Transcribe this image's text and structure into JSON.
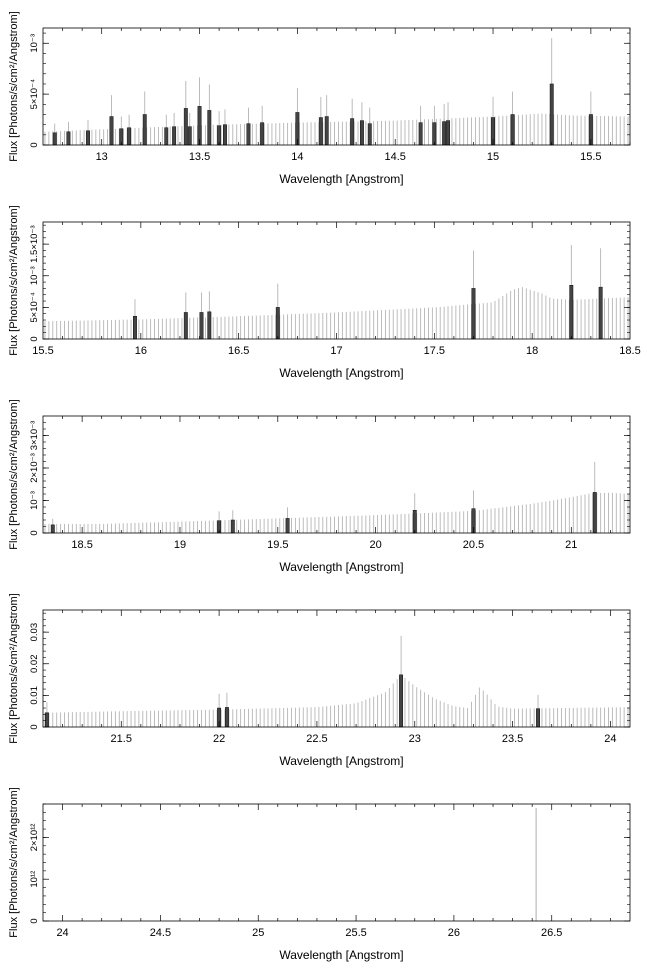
{
  "chart_data": [
    {
      "type": "line",
      "xlabel": "Wavelength [Angstrom]",
      "ylabel": "Flux [Photons/s/cm²/Angstrom]",
      "xlim": [
        12.7,
        15.7
      ],
      "ylim": [
        0,
        0.00115
      ],
      "xticks": [
        13,
        13.5,
        14,
        14.5,
        15,
        15.5
      ],
      "xtick_labels": [
        "13",
        "13.5",
        "14",
        "14.5",
        "15",
        "15.5"
      ],
      "yticks": [
        0,
        0.0005,
        0.001
      ],
      "ytick_labels": [
        "0",
        "5×10⁻⁴",
        "10⁻³"
      ],
      "continuum": [
        [
          12.7,
          0.00013
        ],
        [
          13.2,
          0.00017
        ],
        [
          13.6,
          0.0002
        ],
        [
          14.0,
          0.00022
        ],
        [
          14.5,
          0.00024
        ],
        [
          15.0,
          0.00028
        ],
        [
          15.25,
          0.00031
        ],
        [
          15.4,
          0.00029
        ],
        [
          15.7,
          0.00028
        ]
      ],
      "lines": [
        [
          12.76,
          0.00012
        ],
        [
          12.83,
          0.00013
        ],
        [
          12.93,
          0.00014
        ],
        [
          13.05,
          0.00028
        ],
        [
          13.1,
          0.00016
        ],
        [
          13.14,
          0.00017
        ],
        [
          13.22,
          0.0003
        ],
        [
          13.33,
          0.00017
        ],
        [
          13.37,
          0.00018
        ],
        [
          13.43,
          0.00036
        ],
        [
          13.45,
          0.00018
        ],
        [
          13.5,
          0.00038
        ],
        [
          13.55,
          0.00034
        ],
        [
          13.6,
          0.00019
        ],
        [
          13.63,
          0.0002
        ],
        [
          13.75,
          0.00021
        ],
        [
          13.82,
          0.00022
        ],
        [
          14.0,
          0.00032
        ],
        [
          14.12,
          0.00027
        ],
        [
          14.15,
          0.00028
        ],
        [
          14.28,
          0.00026
        ],
        [
          14.33,
          0.00024
        ],
        [
          14.37,
          0.00021
        ],
        [
          14.63,
          0.00022
        ],
        [
          14.7,
          0.00022
        ],
        [
          14.75,
          0.00023
        ],
        [
          14.77,
          0.00024
        ],
        [
          15.0,
          0.00027
        ],
        [
          15.1,
          0.0003
        ],
        [
          15.3,
          0.0006
        ],
        [
          15.5,
          0.0003
        ]
      ]
    },
    {
      "type": "line",
      "xlabel": "Wavelength [Angstrom]",
      "ylabel": "Flux [Photons/s/cm²/Angstrom]",
      "xlim": [
        15.5,
        18.5
      ],
      "ylim": [
        0,
        0.00185
      ],
      "xticks": [
        15.5,
        16,
        16.5,
        17,
        17.5,
        18,
        18.5
      ],
      "xtick_labels": [
        "15.5",
        "16",
        "16.5",
        "17",
        "17.5",
        "18",
        "18.5"
      ],
      "yticks": [
        0,
        0.0005,
        0.001,
        0.0015
      ],
      "ytick_labels": [
        "0",
        "5×10⁻⁴",
        "10⁻³",
        "1.5×10⁻³"
      ],
      "continuum": [
        [
          15.5,
          0.00028
        ],
        [
          16.0,
          0.00031
        ],
        [
          16.5,
          0.00036
        ],
        [
          17.0,
          0.00042
        ],
        [
          17.5,
          0.0005
        ],
        [
          17.8,
          0.00058
        ],
        [
          17.9,
          0.00078
        ],
        [
          17.95,
          0.00082
        ],
        [
          18.05,
          0.00072
        ],
        [
          18.1,
          0.00064
        ],
        [
          18.2,
          0.00062
        ],
        [
          18.35,
          0.00064
        ],
        [
          18.5,
          0.00066
        ]
      ],
      "lines": [
        [
          15.97,
          0.00036
        ],
        [
          16.23,
          0.00042
        ],
        [
          16.31,
          0.00042
        ],
        [
          16.35,
          0.00043
        ],
        [
          16.7,
          0.0005
        ],
        [
          17.7,
          0.0008
        ],
        [
          18.2,
          0.00085
        ],
        [
          18.35,
          0.00082
        ]
      ]
    },
    {
      "type": "line",
      "xlabel": "Wavelength [Angstrom]",
      "ylabel": "Flux [Photons/s/cm²/Angstrom]",
      "xlim": [
        18.3,
        21.3
      ],
      "ylim": [
        0,
        0.0036
      ],
      "xticks": [
        18.5,
        19,
        19.5,
        20,
        20.5,
        21
      ],
      "xtick_labels": [
        "18.5",
        "19",
        "19.5",
        "20",
        "20.5",
        "21"
      ],
      "yticks": [
        0,
        0.001,
        0.002,
        0.003
      ],
      "ytick_labels": [
        "0",
        "10⁻³",
        "2×10⁻³",
        "3×10⁻³"
      ],
      "continuum": [
        [
          18.3,
          0.00028
        ],
        [
          18.6,
          0.00028
        ],
        [
          19.0,
          0.00035
        ],
        [
          19.5,
          0.00045
        ],
        [
          20.0,
          0.00055
        ],
        [
          20.5,
          0.00068
        ],
        [
          20.8,
          0.0009
        ],
        [
          21.0,
          0.0011
        ],
        [
          21.1,
          0.00122
        ],
        [
          21.2,
          0.00124
        ],
        [
          21.3,
          0.0012
        ]
      ],
      "lines": [
        [
          18.35,
          0.00025
        ],
        [
          19.2,
          0.00038
        ],
        [
          19.27,
          0.0004
        ],
        [
          19.55,
          0.00045
        ],
        [
          20.2,
          0.0007
        ],
        [
          20.5,
          0.00075
        ],
        [
          21.12,
          0.00125
        ]
      ]
    },
    {
      "type": "line",
      "xlabel": "Wavelength [Angstrom]",
      "ylabel": "Flux [Photons/s/cm²/Angstrom]",
      "xlim": [
        21.1,
        24.1
      ],
      "ylim": [
        0,
        0.037
      ],
      "xticks": [
        21.5,
        22,
        22.5,
        23,
        23.5,
        24
      ],
      "xtick_labels": [
        "21.5",
        "22",
        "22.5",
        "23",
        "23.5",
        "24"
      ],
      "yticks": [
        0,
        0.01,
        0.02,
        0.03
      ],
      "ytick_labels": [
        "0",
        "0.01",
        "0.02",
        "0.03"
      ],
      "continuum": [
        [
          21.1,
          0.0045
        ],
        [
          21.5,
          0.005
        ],
        [
          22.0,
          0.0055
        ],
        [
          22.5,
          0.0063
        ],
        [
          22.7,
          0.0075
        ],
        [
          22.85,
          0.011
        ],
        [
          22.93,
          0.0165
        ],
        [
          23.0,
          0.013
        ],
        [
          23.1,
          0.009
        ],
        [
          23.2,
          0.0066
        ],
        [
          23.27,
          0.006
        ],
        [
          23.3,
          0.009
        ],
        [
          23.33,
          0.0125
        ],
        [
          23.36,
          0.011
        ],
        [
          23.42,
          0.0065
        ],
        [
          23.5,
          0.0058
        ],
        [
          24.0,
          0.0062
        ],
        [
          24.1,
          0.0063
        ]
      ],
      "lines": [
        [
          21.12,
          0.0045
        ],
        [
          22.0,
          0.006
        ],
        [
          22.04,
          0.0062
        ],
        [
          22.93,
          0.0165
        ],
        [
          23.63,
          0.0058
        ]
      ]
    },
    {
      "type": "line",
      "xlabel": "Wavelength [Angstrom]",
      "ylabel": "Flux [Photons/s/cm²/Angstrom]",
      "xlim": [
        23.9,
        26.9
      ],
      "ylim": [
        0,
        2800000000000.0
      ],
      "xticks": [
        24,
        24.5,
        25,
        25.5,
        26,
        26.5
      ],
      "xtick_labels": [
        "24",
        "24.5",
        "25",
        "25.5",
        "26",
        "26.5"
      ],
      "yticks": [
        0,
        1000000000000.0,
        2000000000000.0
      ],
      "ytick_labels": [
        "0",
        "10¹²",
        "2×10¹²"
      ],
      "continuum": [],
      "lines": [],
      "spike": [
        26.42,
        2700000000000.0
      ]
    }
  ]
}
